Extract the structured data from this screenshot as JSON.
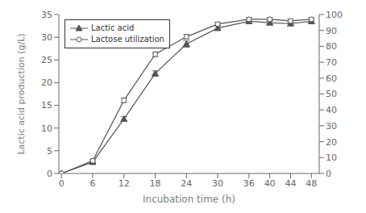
{
  "chart_data": {
    "type": "line",
    "xlabel": "Incubation time (h)",
    "ylabel": "Lactic acid production (g/L)",
    "x": [
      0,
      6,
      12,
      18,
      24,
      30,
      36,
      40,
      44,
      48
    ],
    "xlim": [
      -0.5,
      49.5
    ],
    "xticks": [
      0,
      6,
      12,
      18,
      24,
      30,
      36,
      40,
      44,
      48
    ],
    "ylim": [
      0,
      35
    ],
    "yticks": [
      0,
      5,
      10,
      15,
      20,
      25,
      30,
      35
    ],
    "y2lim": [
      0,
      100
    ],
    "y2ticks": [
      0,
      10,
      20,
      30,
      40,
      50,
      60,
      70,
      80,
      90,
      100
    ],
    "grid": false,
    "legend": "upper left",
    "series": [
      {
        "name": "Lactic acid",
        "color": "#555555",
        "marker": "triangle",
        "values": [
          0,
          2.5,
          12.0,
          22.0,
          28.5,
          32.0,
          33.5,
          33.2,
          33.0,
          33.5
        ],
        "errors": [
          0,
          0.3,
          0.5,
          0.6,
          0.7,
          0.5,
          0.5,
          0.5,
          0.4,
          0.5
        ]
      },
      {
        "name": "Lactose utilization",
        "color": "#555555",
        "marker": "circle",
        "axis": "y2",
        "values": [
          0,
          8.0,
          46.0,
          75.0,
          86.0,
          94.0,
          97.0,
          97.0,
          96.0,
          97.0
        ],
        "errors": [
          0,
          1.0,
          1.5,
          1.5,
          1.5,
          1.2,
          1.2,
          1.2,
          1.2,
          1.2
        ]
      }
    ]
  }
}
